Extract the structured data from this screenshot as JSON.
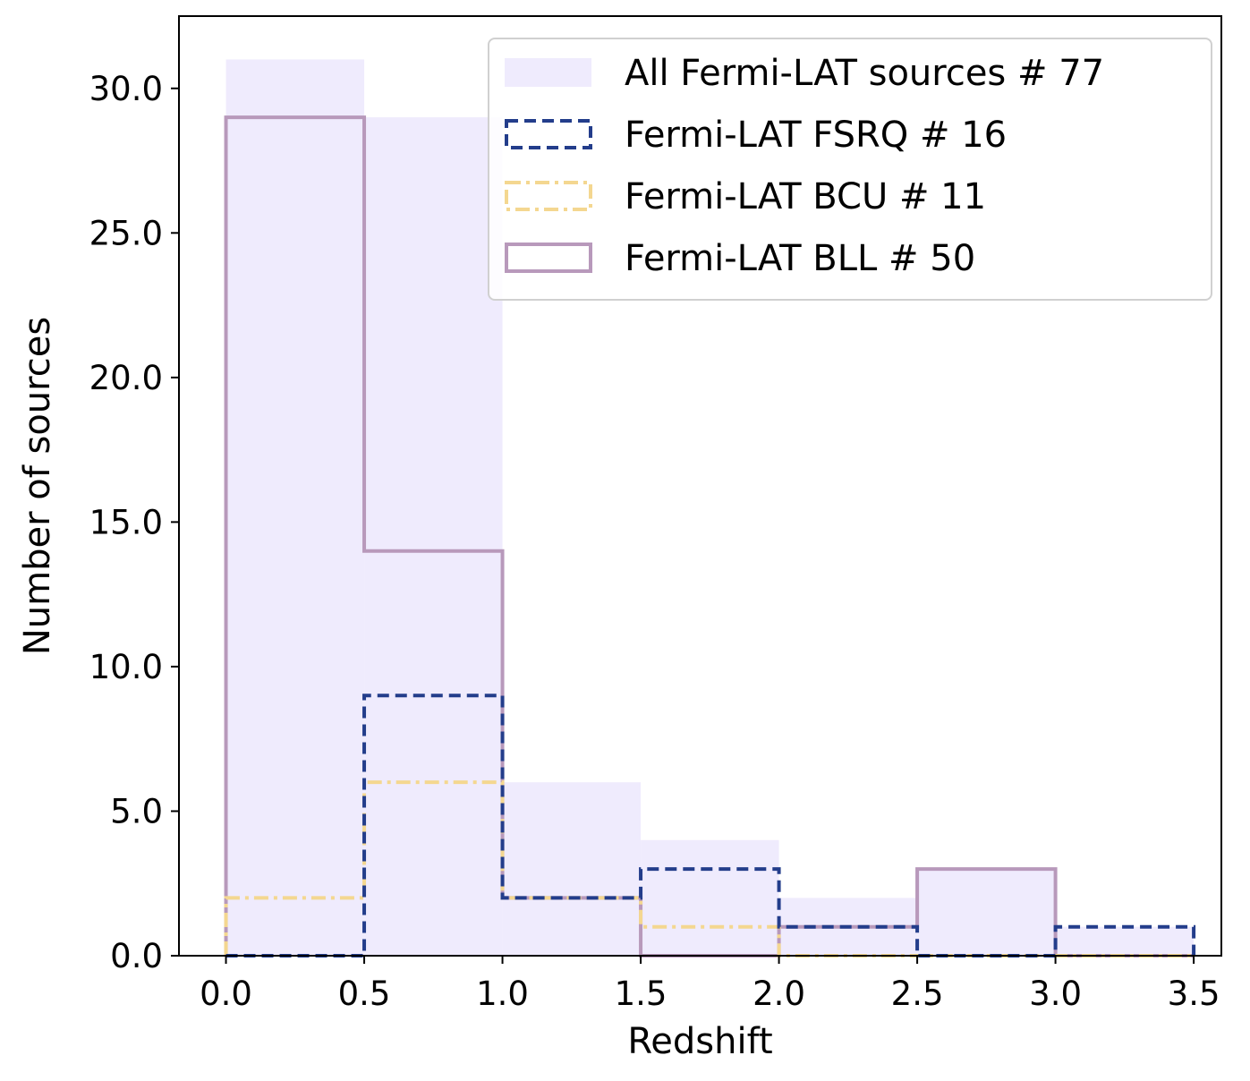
{
  "chart_data": {
    "type": "histogram",
    "title": "",
    "xlabel": "Redshift",
    "ylabel": "Number of sources",
    "xlim": [
      -0.17,
      3.6
    ],
    "ylim": [
      0,
      32.5
    ],
    "xticks": [
      0.0,
      0.5,
      1.0,
      1.5,
      2.0,
      2.5,
      3.0,
      3.5
    ],
    "xtick_labels": [
      "0.0",
      "0.5",
      "1.0",
      "1.5",
      "2.0",
      "2.5",
      "3.0",
      "3.5"
    ],
    "yticks": [
      0,
      5,
      10,
      15,
      20,
      25,
      30
    ],
    "ytick_labels": [
      "0.0",
      "5.0",
      "10.0",
      "15.0",
      "20.0",
      "25.0",
      "30.0"
    ],
    "bin_edges": [
      0.0,
      0.5,
      1.0,
      1.5,
      2.0,
      2.5,
      3.0,
      3.5
    ],
    "legend_position": "top-right",
    "series": [
      {
        "name": "All Fermi-LAT sources # 77",
        "style": "filled",
        "color": "#efebfd",
        "values": [
          31,
          29,
          6,
          4,
          2,
          3,
          1
        ]
      },
      {
        "name": "Fermi-LAT FSRQ # 16",
        "style": "dashed",
        "color": "#233d8b",
        "values": [
          0,
          9,
          2,
          3,
          1,
          0,
          1
        ]
      },
      {
        "name": "Fermi-LAT BCU # 11",
        "style": "dashdot",
        "color": "#f4d790",
        "values": [
          2,
          6,
          2,
          1,
          0,
          0,
          0
        ]
      },
      {
        "name": "Fermi-LAT BLL # 50",
        "style": "solid",
        "color": "#b899bb",
        "values": [
          29,
          14,
          2,
          0,
          1,
          3,
          0
        ]
      }
    ]
  }
}
